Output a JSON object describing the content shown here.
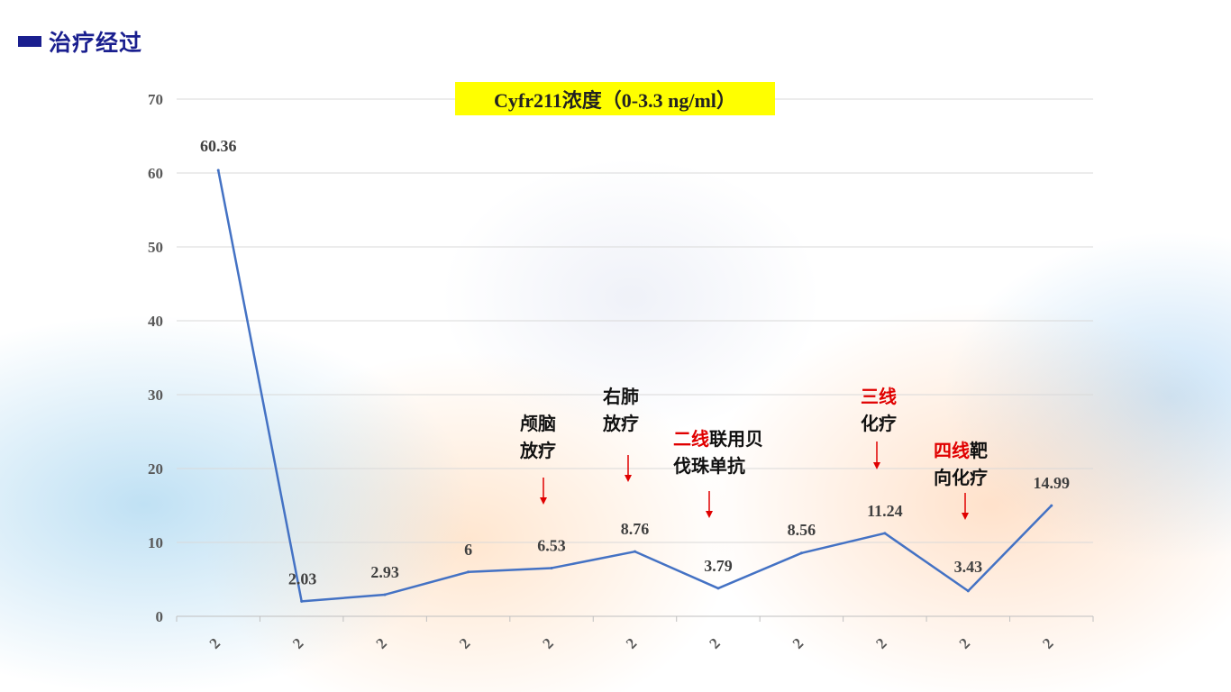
{
  "header": {
    "title": "治疗经过"
  },
  "chart_data": {
    "type": "line",
    "title": "Cyfr211浓度（0-3.3 ng/ml）",
    "categories": [
      "2",
      "2",
      "2",
      "2",
      "2",
      "2",
      "2",
      "2",
      "2",
      "2",
      "2"
    ],
    "series": [
      {
        "values": [
          60.36,
          2.03,
          2.93,
          6,
          6.53,
          8.76,
          3.79,
          8.56,
          11.24,
          3.43,
          14.99
        ]
      }
    ],
    "data_labels": [
      "60.36",
      "2.03",
      "2.93",
      "6",
      "6.53",
      "8.76",
      "3.79",
      "8.56",
      "11.24",
      "3.43",
      "14.99"
    ],
    "y_ticks": [
      "0",
      "10",
      "20",
      "30",
      "40",
      "50",
      "60",
      "70"
    ],
    "ylim": [
      0,
      70
    ],
    "grid": true,
    "line_color": "#4472c4",
    "annotations": [
      {
        "lines": [
          [
            "颅脑",
            ""
          ],
          [
            "放疗",
            ""
          ]
        ],
        "point_index": 4
      },
      {
        "lines": [
          [
            "右肺",
            ""
          ],
          [
            "放疗",
            ""
          ]
        ],
        "point_index": 5
      },
      {
        "lines": [
          [
            "二线",
            "联用贝"
          ],
          [
            "伐珠单抗",
            ""
          ]
        ],
        "point_index": 6
      },
      {
        "lines": [
          [
            "三线",
            ""
          ],
          [
            "化疗",
            ""
          ]
        ],
        "point_index": 8
      },
      {
        "lines": [
          [
            "四线",
            "靶"
          ],
          [
            "向化疗",
            ""
          ]
        ],
        "point_index": 9
      }
    ],
    "annotation_highlight_color": "#e00000",
    "arrow_color": "#e00000"
  }
}
